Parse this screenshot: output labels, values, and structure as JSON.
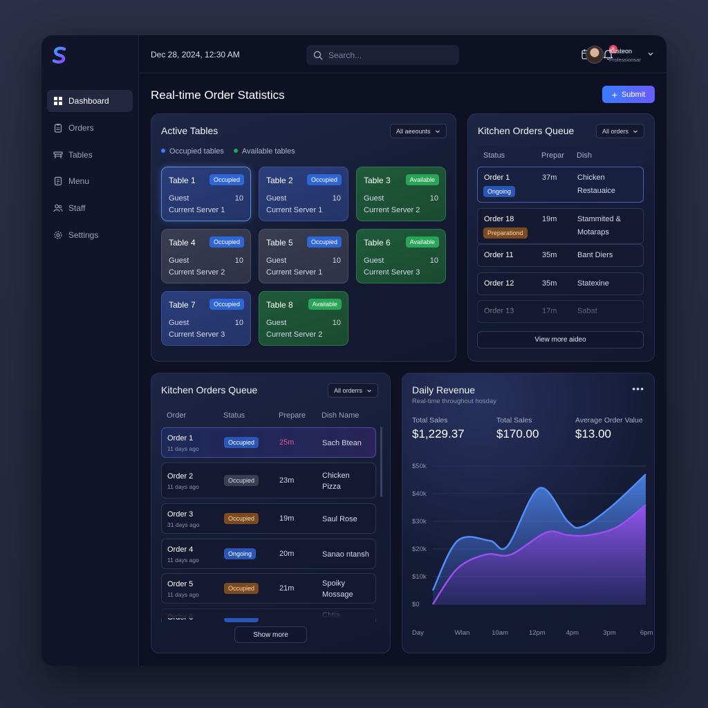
{
  "topbar": {
    "date": "Dec 28, 2024, 12:30 AM",
    "search_placeholder": "Search...",
    "notification_count": "8",
    "user_name": "Kusteon",
    "user_role": "Professionsar"
  },
  "sidebar": {
    "items": [
      {
        "label": "Dashboard",
        "icon": "grid-icon"
      },
      {
        "label": "Orders",
        "icon": "clipboard-icon"
      },
      {
        "label": "Tables",
        "icon": "table-icon"
      },
      {
        "label": "Menu",
        "icon": "menu-icon"
      },
      {
        "label": "Staff",
        "icon": "users-icon"
      },
      {
        "label": "Settings",
        "icon": "gear-icon"
      }
    ]
  },
  "page": {
    "title": "Real-time Order Statistics",
    "submit_label": "Submit"
  },
  "active_tables": {
    "title": "Active Tables",
    "filter": "All aeeounts",
    "legend_occupied": "Occupied tables",
    "legend_available": "Available tables",
    "guest_label": "Guest",
    "tables": [
      {
        "name": "Table 1",
        "status": "Occupied",
        "guests": "10",
        "server": "Current Server 1"
      },
      {
        "name": "Table 2",
        "status": "Occupied",
        "guests": "10",
        "server": "Current Server 1"
      },
      {
        "name": "Table 3",
        "status": "Available",
        "guests": "10",
        "server": "Current Server 2"
      },
      {
        "name": "Table 4",
        "status": "Occupied",
        "guests": "10",
        "server": "Current Server 2"
      },
      {
        "name": "Table 5",
        "status": "Occupied",
        "guests": "10",
        "server": "Current Server 1"
      },
      {
        "name": "Table 6",
        "status": "Available",
        "guests": "10",
        "server": "Current Server 3"
      },
      {
        "name": "Table 7",
        "status": "Occupied",
        "guests": "10",
        "server": "Current Server 3"
      },
      {
        "name": "Table 8",
        "status": "Available",
        "guests": "10",
        "server": "Current Server 2"
      }
    ]
  },
  "kitchen_right": {
    "title": "Kitchen Orders Queue",
    "filter": "All orders",
    "headers": [
      "Status",
      "Prepar",
      "Dish"
    ],
    "rows": [
      {
        "order": "Order 1",
        "chip": "Ongoing",
        "prep": "37m",
        "dish1": "Chicken",
        "dish2": "Restauaice"
      },
      {
        "order": "Order 18",
        "chip": "Preparationd",
        "prep": "19m",
        "dish1": "Stammited &",
        "dish2": "Motaraps"
      },
      {
        "order": "Order 11",
        "prep": "35m",
        "dish1": "Bant Diers"
      },
      {
        "order": "Order 12",
        "prep": "35m",
        "dish1": "Statexine"
      },
      {
        "order": "Order 13",
        "prep": "17m",
        "dish1": "Sabat"
      }
    ],
    "view_more": "View more aideo"
  },
  "kitchen_bottom": {
    "title": "Kitchen Orders Queue",
    "filter": "All orderrs",
    "headers": [
      "Order",
      "Status",
      "Prepare",
      "Dish Name"
    ],
    "rows": [
      {
        "order": "Order 1",
        "time": "11 days ago",
        "status": "Occupied",
        "prep": "25m",
        "dish1": "Sach Btean",
        "dish2": ""
      },
      {
        "order": "Order 2",
        "time": "11 days ago",
        "status": "Occupied",
        "prep": "23m",
        "dish1": "Chicken",
        "dish2": "Pizza"
      },
      {
        "order": "Order 3",
        "time": "31 days ago",
        "status": "Occupied",
        "prep": "19m",
        "dish1": "Saul Rose",
        "dish2": ""
      },
      {
        "order": "Order 4",
        "time": "11 days ago",
        "status": "Ongoing",
        "prep": "20m",
        "dish1": "Sanao ntansh",
        "dish2": ""
      },
      {
        "order": "Order 5",
        "time": "11 days ago",
        "status": "Occupied",
        "prep": "21m",
        "dish1": "Spoiky",
        "dish2": "Mossage"
      },
      {
        "order": "Order 6",
        "time": "",
        "status": "",
        "prep": "",
        "dish1": "Chtia",
        "dish2": ""
      }
    ],
    "show_more": "Show more"
  },
  "revenue": {
    "title": "Daily Revenue",
    "subtitle": "Real-time throughout hosday",
    "stats": [
      {
        "label": "Total Sales",
        "value": "$1,229.37"
      },
      {
        "label": "Total Sales",
        "value": "$170.00"
      },
      {
        "label": "Average Order Value",
        "value": "$13.00"
      }
    ]
  },
  "chart_data": {
    "type": "area",
    "title": "",
    "x": [
      "Day",
      "Wlan",
      "10am",
      "12pm",
      "4pm",
      "3pm",
      "6pm"
    ],
    "y_ticks": [
      "$0",
      "$10k",
      "$20k",
      "$30k",
      "$40k",
      "$50k"
    ],
    "ylim": [
      0,
      50000
    ],
    "xlabel": "",
    "ylabel": "",
    "grid": true,
    "series": [
      {
        "color": "#4f8ef7",
        "points": [
          [
            0,
            5000
          ],
          [
            0.7,
            23000
          ],
          [
            1.6,
            23000
          ],
          [
            2.1,
            21000
          ],
          [
            3.0,
            42000
          ],
          [
            3.8,
            30000
          ],
          [
            4.2,
            28000
          ],
          [
            5.0,
            35000
          ],
          [
            6.0,
            47000
          ]
        ]
      },
      {
        "color": "#9a4ff0",
        "points": [
          [
            0,
            0
          ],
          [
            0.7,
            13000
          ],
          [
            1.5,
            18000
          ],
          [
            2.2,
            18000
          ],
          [
            3.2,
            26000
          ],
          [
            3.8,
            25000
          ],
          [
            4.4,
            25000
          ],
          [
            5.2,
            28000
          ],
          [
            6.0,
            36000
          ]
        ]
      }
    ]
  }
}
